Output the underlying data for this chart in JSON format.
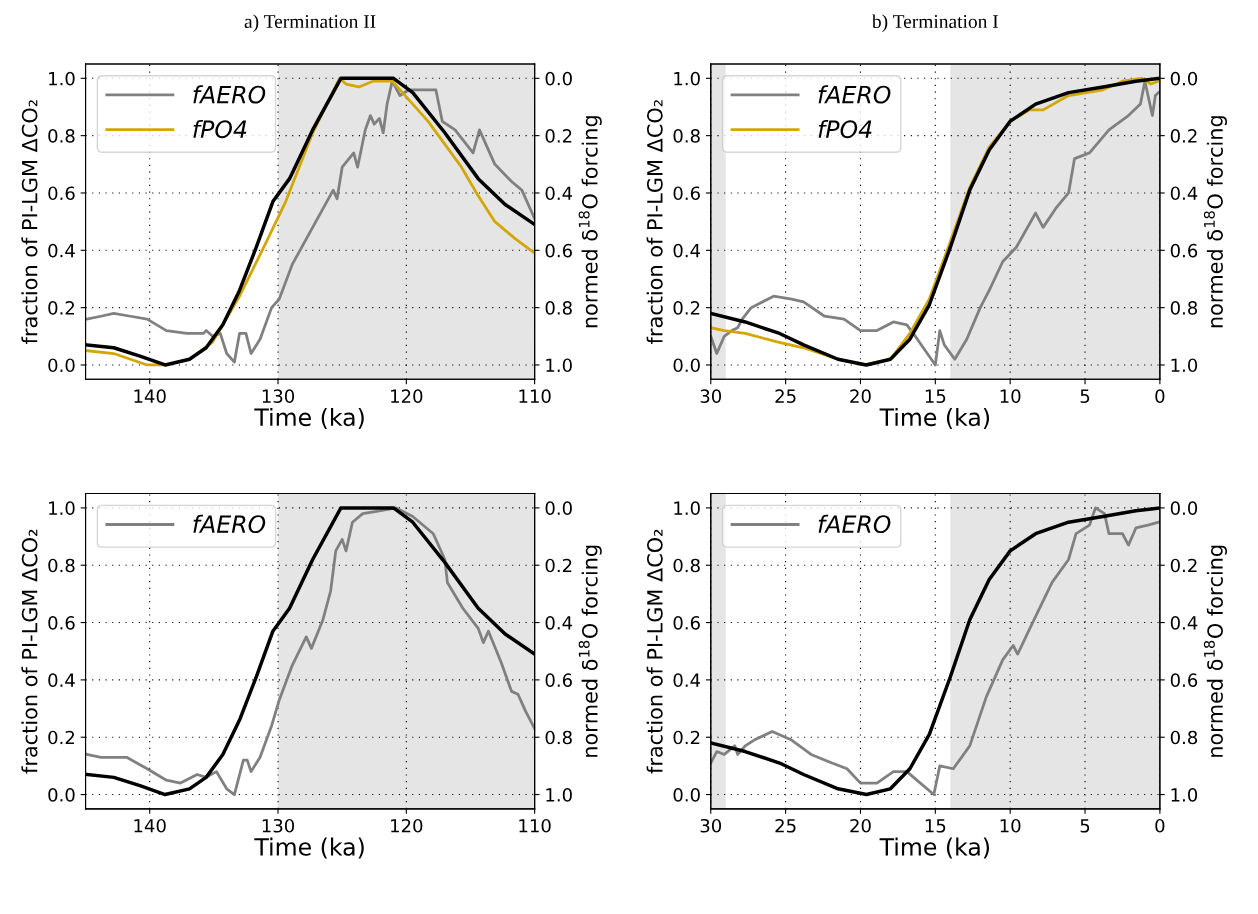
{
  "chart_data": [
    {
      "type": "line",
      "title": "a) Termination II",
      "xlabel": "Time (ka)",
      "ylabel": "fraction of PI-LGM ΔCO₂",
      "y2label": "normed δ$^{18}$O forcing",
      "xlim": [
        145,
        110
      ],
      "xticks": [
        140,
        130,
        120,
        110
      ],
      "ylim": [
        -0.05,
        1.05
      ],
      "yticks": [
        {
          "value": 0,
          "label": "0.0"
        },
        {
          "value": 0.2,
          "label": "0.2"
        },
        {
          "value": 0.4,
          "label": "0.4"
        },
        {
          "value": 0.6,
          "label": "0.6"
        },
        {
          "value": 0.8,
          "label": "0.8"
        },
        {
          "value": 1,
          "label": "1.0"
        }
      ],
      "y2lim": [
        1.05,
        -0.05
      ],
      "y2ticks": [
        {
          "value": 0,
          "label": "0.0"
        },
        {
          "value": 0.2,
          "label": "0.2"
        },
        {
          "value": 0.4,
          "label": "0.4"
        },
        {
          "value": 0.6,
          "label": "0.6"
        },
        {
          "value": 0.8,
          "label": "0.8"
        },
        {
          "value": 1,
          "label": "1.0"
        }
      ],
      "grid": true,
      "legend": "top left",
      "bands": [
        {
          "axis": "x",
          "from": 130,
          "to": 110,
          "color": "#e5e5e5"
        }
      ],
      "series": [
        {
          "name": "fAERO",
          "color": "#808080",
          "x": [
            144.9,
            143.8,
            142.8,
            141.5,
            140.2,
            138.7,
            137.1,
            135.8,
            135.6,
            135.1,
            134.5,
            134.0,
            133.4,
            133.0,
            132.5,
            132.1,
            131.4,
            130.5,
            129.9,
            128.9,
            127.3,
            125.7,
            125.4,
            125.0,
            124.1,
            123.8,
            123.2,
            122.8,
            122.5,
            122.1,
            121.8,
            121.5,
            121.1,
            120.5,
            119.8,
            117.7,
            117.2,
            116.2,
            114.8,
            114.3,
            113.1,
            111.8,
            111.0,
            110.0
          ],
          "values": [
            0.16,
            0.17,
            0.18,
            0.17,
            0.16,
            0.12,
            0.11,
            0.11,
            0.12,
            0.1,
            0.11,
            0.04,
            0.01,
            0.11,
            0.11,
            0.04,
            0.09,
            0.2,
            0.23,
            0.35,
            0.48,
            0.61,
            0.58,
            0.69,
            0.74,
            0.69,
            0.82,
            0.87,
            0.84,
            0.86,
            0.81,
            0.91,
            0.99,
            0.94,
            0.96,
            0.96,
            0.85,
            0.82,
            0.74,
            0.82,
            0.7,
            0.64,
            0.61,
            0.51
          ]
        },
        {
          "name": "fPO4",
          "color": "#d4a600",
          "x": [
            144.9,
            142.8,
            140.2,
            138.7,
            136.9,
            135.1,
            133.0,
            130.9,
            129.4,
            127.3,
            125.2,
            124.7,
            123.7,
            122.6,
            121.1,
            120.3,
            118.3,
            115.7,
            114.4,
            113.1,
            111.5,
            110.0
          ],
          "values": [
            0.05,
            0.04,
            0.0,
            0.0,
            0.02,
            0.08,
            0.24,
            0.43,
            0.57,
            0.81,
            1.0,
            0.98,
            0.97,
            0.99,
            0.99,
            0.95,
            0.85,
            0.69,
            0.59,
            0.5,
            0.44,
            0.39
          ]
        },
        {
          "color": "#000000",
          "axis": "y2",
          "x": [
            144.9,
            142.8,
            140.7,
            138.8,
            136.9,
            135.6,
            134.3,
            133.0,
            131.7,
            130.4,
            129.1,
            127.3,
            125.1,
            121.0,
            119.5,
            117.0,
            114.4,
            112.3,
            110.0
          ],
          "values": [
            0.93,
            0.94,
            0.97,
            1.0,
            0.98,
            0.94,
            0.86,
            0.74,
            0.59,
            0.43,
            0.35,
            0.18,
            0.0,
            0.0,
            0.05,
            0.19,
            0.35,
            0.44,
            0.51
          ]
        }
      ]
    },
    {
      "type": "line",
      "title": "b) Termination I",
      "xlabel": "Time (ka)",
      "ylabel": "fraction of PI-LGM ΔCO₂",
      "y2label": "normed δ$^{18}$O forcing",
      "xlim": [
        30,
        0
      ],
      "xticks": [
        30,
        25,
        20,
        15,
        10,
        5,
        0
      ],
      "ylim": [
        -0.05,
        1.05
      ],
      "yticks": [
        {
          "value": 0,
          "label": "0.0"
        },
        {
          "value": 0.2,
          "label": "0.2"
        },
        {
          "value": 0.4,
          "label": "0.4"
        },
        {
          "value": 0.6,
          "label": "0.6"
        },
        {
          "value": 0.8,
          "label": "0.8"
        },
        {
          "value": 1,
          "label": "1.0"
        }
      ],
      "y2lim": [
        1.05,
        -0.05
      ],
      "y2ticks": [
        {
          "value": 0,
          "label": "0.0"
        },
        {
          "value": 0.2,
          "label": "0.2"
        },
        {
          "value": 0.4,
          "label": "0.4"
        },
        {
          "value": 0.6,
          "label": "0.6"
        },
        {
          "value": 0.8,
          "label": "0.8"
        },
        {
          "value": 1,
          "label": "1.0"
        }
      ],
      "grid": true,
      "legend": "top left",
      "bands": [
        {
          "axis": "x",
          "from": 30,
          "to": 29,
          "color": "#e5e5e5"
        },
        {
          "axis": "x",
          "from": 14,
          "to": 0,
          "color": "#e5e5e5"
        }
      ],
      "series": [
        {
          "name": "fAERO",
          "color": "#808080",
          "x": [
            30,
            29.6,
            29.1,
            28.6,
            28.2,
            27.9,
            27.3,
            25.8,
            24.6,
            23.8,
            22.4,
            21.1,
            20.0,
            18.9,
            17.8,
            16.9,
            16.2,
            15.0,
            14.7,
            14.4,
            13.7,
            12.9,
            12.0,
            11.4,
            10.5,
            9.6,
            8.3,
            7.8,
            6.9,
            6.1,
            5.7,
            4.7,
            3.4,
            2.1,
            1.3,
            1.0,
            0.5,
            0.3,
            0.1
          ],
          "values": [
            0.1,
            0.04,
            0.1,
            0.12,
            0.13,
            0.16,
            0.2,
            0.24,
            0.23,
            0.22,
            0.17,
            0.16,
            0.12,
            0.12,
            0.15,
            0.14,
            0.09,
            0.0,
            0.12,
            0.07,
            0.02,
            0.09,
            0.2,
            0.26,
            0.36,
            0.41,
            0.53,
            0.48,
            0.55,
            0.6,
            0.72,
            0.74,
            0.82,
            0.87,
            0.91,
            0.99,
            0.87,
            0.94,
            0.95
          ]
        },
        {
          "name": "fPO4",
          "color": "#d4a600",
          "x": [
            30,
            29.1,
            27.7,
            25.5,
            23.8,
            21.5,
            19.8,
            18.0,
            16.7,
            15.4,
            14.0,
            12.7,
            11.4,
            10.0,
            8.7,
            7.8,
            6.1,
            3.8,
            2.5,
            1.2,
            0.6,
            0.1
          ],
          "values": [
            0.13,
            0.12,
            0.11,
            0.08,
            0.06,
            0.02,
            0.0,
            0.02,
            0.11,
            0.23,
            0.43,
            0.62,
            0.76,
            0.85,
            0.89,
            0.89,
            0.94,
            0.96,
            0.99,
            1.0,
            0.98,
            0.99
          ]
        },
        {
          "color": "#000000",
          "axis": "y2",
          "x": [
            30,
            27.7,
            25.4,
            23.8,
            21.5,
            19.6,
            18.0,
            16.7,
            15.4,
            14.0,
            12.7,
            11.4,
            10.0,
            8.3,
            6.1,
            3.8,
            1.6,
            0.0
          ],
          "values": [
            0.82,
            0.85,
            0.89,
            0.93,
            0.98,
            1.0,
            0.98,
            0.91,
            0.79,
            0.59,
            0.39,
            0.25,
            0.15,
            0.09,
            0.05,
            0.03,
            0.01,
            0.0
          ]
        }
      ]
    },
    {
      "type": "line",
      "xlabel": "Time (ka)",
      "ylabel": "fraction of PI-LGM ΔCO₂",
      "y2label": "normed δ$^{18}$O forcing",
      "xlim": [
        145,
        110
      ],
      "xticks": [
        140,
        130,
        120,
        110
      ],
      "ylim": [
        -0.05,
        1.05
      ],
      "yticks": [
        {
          "value": 0,
          "label": "0.0"
        },
        {
          "value": 0.2,
          "label": "0.2"
        },
        {
          "value": 0.4,
          "label": "0.4"
        },
        {
          "value": 0.6,
          "label": "0.6"
        },
        {
          "value": 0.8,
          "label": "0.8"
        },
        {
          "value": 1,
          "label": "1.0"
        }
      ],
      "y2lim": [
        1.05,
        -0.05
      ],
      "y2ticks": [
        {
          "value": 0,
          "label": "0.0"
        },
        {
          "value": 0.2,
          "label": "0.2"
        },
        {
          "value": 0.4,
          "label": "0.4"
        },
        {
          "value": 0.6,
          "label": "0.6"
        },
        {
          "value": 0.8,
          "label": "0.8"
        },
        {
          "value": 1,
          "label": "1.0"
        }
      ],
      "grid": true,
      "legend": "top left",
      "bands": [
        {
          "axis": "x",
          "from": 130,
          "to": 110,
          "color": "#e5e5e5"
        }
      ],
      "series": [
        {
          "name": "fAERO",
          "color": "#808080",
          "x": [
            144.9,
            143.8,
            141.8,
            140.2,
            138.7,
            137.6,
            136.3,
            135.6,
            134.8,
            134.0,
            133.4,
            132.7,
            132.4,
            132.1,
            131.4,
            130.5,
            129.9,
            128.9,
            127.8,
            127.4,
            126.5,
            125.9,
            125.5,
            125.0,
            124.7,
            124.2,
            123.4,
            122.1,
            120.8,
            119.5,
            117.9,
            117.0,
            116.8,
            115.6,
            114.4,
            114.0,
            113.6,
            112.6,
            111.8,
            111.3,
            110.7,
            110.0
          ],
          "values": [
            0.14,
            0.13,
            0.13,
            0.09,
            0.05,
            0.04,
            0.07,
            0.06,
            0.08,
            0.02,
            0.0,
            0.12,
            0.12,
            0.08,
            0.13,
            0.24,
            0.33,
            0.45,
            0.55,
            0.51,
            0.61,
            0.71,
            0.85,
            0.89,
            0.85,
            0.95,
            0.98,
            0.99,
            1.0,
            0.97,
            0.91,
            0.82,
            0.74,
            0.65,
            0.58,
            0.53,
            0.57,
            0.46,
            0.36,
            0.35,
            0.29,
            0.23
          ]
        },
        {
          "color": "#000000",
          "axis": "y2",
          "x": [
            144.9,
            142.8,
            140.7,
            138.8,
            136.9,
            135.6,
            134.3,
            133.0,
            131.7,
            130.4,
            129.1,
            127.3,
            125.1,
            121.0,
            119.5,
            117.0,
            114.4,
            112.3,
            110.0
          ],
          "values": [
            0.93,
            0.94,
            0.97,
            1.0,
            0.98,
            0.94,
            0.86,
            0.74,
            0.59,
            0.43,
            0.35,
            0.18,
            0.0,
            0.0,
            0.05,
            0.19,
            0.35,
            0.44,
            0.51
          ]
        }
      ]
    },
    {
      "type": "line",
      "xlabel": "Time (ka)",
      "ylabel": "fraction of PI-LGM ΔCO₂",
      "y2label": "normed δ$^{18}$O forcing",
      "xlim": [
        30,
        0
      ],
      "xticks": [
        30,
        25,
        20,
        15,
        10,
        5,
        0
      ],
      "ylim": [
        -0.05,
        1.05
      ],
      "yticks": [
        {
          "value": 0,
          "label": "0.0"
        },
        {
          "value": 0.2,
          "label": "0.2"
        },
        {
          "value": 0.4,
          "label": "0.4"
        },
        {
          "value": 0.6,
          "label": "0.6"
        },
        {
          "value": 0.8,
          "label": "0.8"
        },
        {
          "value": 1,
          "label": "1.0"
        }
      ],
      "y2lim": [
        1.05,
        -0.05
      ],
      "y2ticks": [
        {
          "value": 0,
          "label": "0.0"
        },
        {
          "value": 0.2,
          "label": "0.2"
        },
        {
          "value": 0.4,
          "label": "0.4"
        },
        {
          "value": 0.6,
          "label": "0.6"
        },
        {
          "value": 0.8,
          "label": "0.8"
        },
        {
          "value": 1,
          "label": "1.0"
        }
      ],
      "grid": true,
      "legend": "top left",
      "bands": [
        {
          "axis": "x",
          "from": 30,
          "to": 29,
          "color": "#e5e5e5"
        },
        {
          "axis": "x",
          "from": 14,
          "to": 0,
          "color": "#e5e5e5"
        }
      ],
      "series": [
        {
          "name": "fAERO",
          "color": "#808080",
          "x": [
            30,
            29.6,
            29.1,
            28.4,
            28.2,
            27.7,
            27.1,
            25.9,
            24.6,
            23.3,
            21.9,
            20.9,
            20.0,
            18.9,
            17.8,
            16.9,
            16.0,
            15.1,
            14.7,
            13.8,
            12.7,
            11.6,
            10.5,
            9.8,
            9.5,
            8.5,
            7.2,
            6.1,
            5.6,
            4.7,
            4.3,
            3.7,
            3.4,
            2.5,
            2.1,
            1.6,
            0.8,
            0.1
          ],
          "values": [
            0.11,
            0.15,
            0.14,
            0.17,
            0.14,
            0.17,
            0.19,
            0.22,
            0.19,
            0.14,
            0.11,
            0.09,
            0.04,
            0.04,
            0.08,
            0.08,
            0.04,
            0.0,
            0.1,
            0.09,
            0.17,
            0.34,
            0.47,
            0.52,
            0.49,
            0.6,
            0.74,
            0.82,
            0.91,
            0.94,
            1.0,
            0.98,
            0.91,
            0.91,
            0.87,
            0.93,
            0.94,
            0.95
          ]
        },
        {
          "color": "#000000",
          "axis": "y2",
          "x": [
            30,
            27.7,
            25.4,
            23.8,
            21.5,
            19.6,
            18.0,
            16.7,
            15.4,
            14.0,
            12.7,
            11.4,
            10.0,
            8.3,
            6.1,
            3.8,
            1.6,
            0.0
          ],
          "values": [
            0.82,
            0.85,
            0.89,
            0.93,
            0.98,
            1.0,
            0.98,
            0.91,
            0.79,
            0.59,
            0.39,
            0.25,
            0.15,
            0.09,
            0.05,
            0.03,
            0.01,
            0.0
          ]
        }
      ]
    }
  ]
}
